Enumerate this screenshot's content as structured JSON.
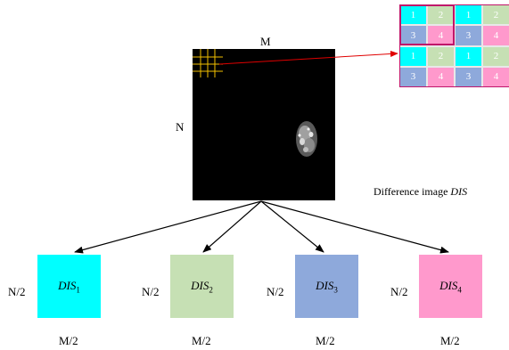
{
  "main_image": {
    "width_label": "M",
    "height_label": "N",
    "caption_prefix": "Difference image ",
    "caption_name": "DIS"
  },
  "block_grid": {
    "cells": [
      "1",
      "2",
      "1",
      "2",
      "3",
      "4",
      "3",
      "4",
      "1",
      "2",
      "1",
      "2",
      "3",
      "4",
      "3",
      "4"
    ],
    "colors": {
      "1": "#00ffff",
      "2": "#c6e0b4",
      "3": "#8ea9db",
      "4": "#ff99cc"
    }
  },
  "sub_images": [
    {
      "name": "DIS",
      "index": "1",
      "height_label": "N/2",
      "width_label": "M/2",
      "color": "#00ffff"
    },
    {
      "name": "DIS",
      "index": "2",
      "height_label": "N/2",
      "width_label": "M/2",
      "color": "#c6e0b4"
    },
    {
      "name": "DIS",
      "index": "3",
      "height_label": "N/2",
      "width_label": "M/2",
      "color": "#8ea9db"
    },
    {
      "name": "DIS",
      "index": "4",
      "height_label": "N/2",
      "width_label": "M/2",
      "color": "#ff99cc"
    }
  ],
  "colors": {
    "pointer_arrow": "#e00000",
    "grid_overlay": "#f2c000",
    "selection_box": "#c0166a"
  }
}
